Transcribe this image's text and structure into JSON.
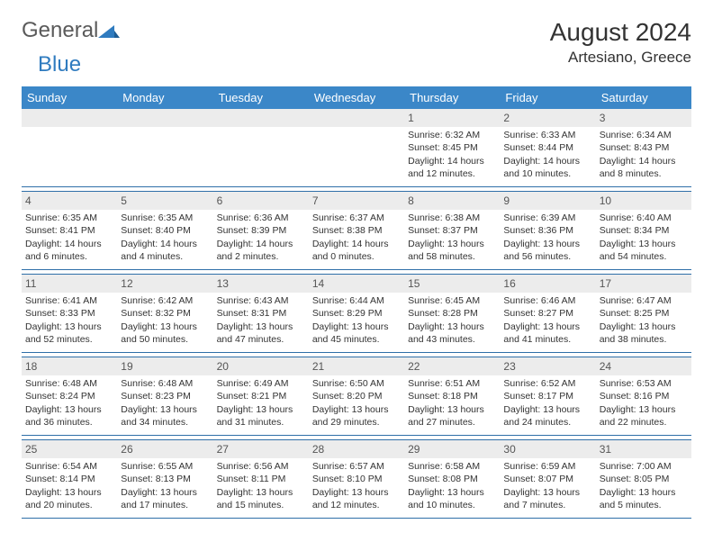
{
  "logo": {
    "general": "General",
    "blue": "Blue"
  },
  "title": "August 2024",
  "location": "Artesiano, Greece",
  "colors": {
    "header_bg": "#3b87c8",
    "header_text": "#ffffff",
    "row_border": "#2f6fa8",
    "daynum_bg": "#ececec",
    "text": "#333333",
    "logo_gray": "#5a5a5a",
    "logo_blue": "#2f7bbf"
  },
  "weekdays": [
    "Sunday",
    "Monday",
    "Tuesday",
    "Wednesday",
    "Thursday",
    "Friday",
    "Saturday"
  ],
  "weeks": [
    [
      null,
      null,
      null,
      null,
      {
        "d": "1",
        "sr": "6:32 AM",
        "ss": "8:45 PM",
        "dl": "14 hours and 12 minutes."
      },
      {
        "d": "2",
        "sr": "6:33 AM",
        "ss": "8:44 PM",
        "dl": "14 hours and 10 minutes."
      },
      {
        "d": "3",
        "sr": "6:34 AM",
        "ss": "8:43 PM",
        "dl": "14 hours and 8 minutes."
      }
    ],
    [
      {
        "d": "4",
        "sr": "6:35 AM",
        "ss": "8:41 PM",
        "dl": "14 hours and 6 minutes."
      },
      {
        "d": "5",
        "sr": "6:35 AM",
        "ss": "8:40 PM",
        "dl": "14 hours and 4 minutes."
      },
      {
        "d": "6",
        "sr": "6:36 AM",
        "ss": "8:39 PM",
        "dl": "14 hours and 2 minutes."
      },
      {
        "d": "7",
        "sr": "6:37 AM",
        "ss": "8:38 PM",
        "dl": "14 hours and 0 minutes."
      },
      {
        "d": "8",
        "sr": "6:38 AM",
        "ss": "8:37 PM",
        "dl": "13 hours and 58 minutes."
      },
      {
        "d": "9",
        "sr": "6:39 AM",
        "ss": "8:36 PM",
        "dl": "13 hours and 56 minutes."
      },
      {
        "d": "10",
        "sr": "6:40 AM",
        "ss": "8:34 PM",
        "dl": "13 hours and 54 minutes."
      }
    ],
    [
      {
        "d": "11",
        "sr": "6:41 AM",
        "ss": "8:33 PM",
        "dl": "13 hours and 52 minutes."
      },
      {
        "d": "12",
        "sr": "6:42 AM",
        "ss": "8:32 PM",
        "dl": "13 hours and 50 minutes."
      },
      {
        "d": "13",
        "sr": "6:43 AM",
        "ss": "8:31 PM",
        "dl": "13 hours and 47 minutes."
      },
      {
        "d": "14",
        "sr": "6:44 AM",
        "ss": "8:29 PM",
        "dl": "13 hours and 45 minutes."
      },
      {
        "d": "15",
        "sr": "6:45 AM",
        "ss": "8:28 PM",
        "dl": "13 hours and 43 minutes."
      },
      {
        "d": "16",
        "sr": "6:46 AM",
        "ss": "8:27 PM",
        "dl": "13 hours and 41 minutes."
      },
      {
        "d": "17",
        "sr": "6:47 AM",
        "ss": "8:25 PM",
        "dl": "13 hours and 38 minutes."
      }
    ],
    [
      {
        "d": "18",
        "sr": "6:48 AM",
        "ss": "8:24 PM",
        "dl": "13 hours and 36 minutes."
      },
      {
        "d": "19",
        "sr": "6:48 AM",
        "ss": "8:23 PM",
        "dl": "13 hours and 34 minutes."
      },
      {
        "d": "20",
        "sr": "6:49 AM",
        "ss": "8:21 PM",
        "dl": "13 hours and 31 minutes."
      },
      {
        "d": "21",
        "sr": "6:50 AM",
        "ss": "8:20 PM",
        "dl": "13 hours and 29 minutes."
      },
      {
        "d": "22",
        "sr": "6:51 AM",
        "ss": "8:18 PM",
        "dl": "13 hours and 27 minutes."
      },
      {
        "d": "23",
        "sr": "6:52 AM",
        "ss": "8:17 PM",
        "dl": "13 hours and 24 minutes."
      },
      {
        "d": "24",
        "sr": "6:53 AM",
        "ss": "8:16 PM",
        "dl": "13 hours and 22 minutes."
      }
    ],
    [
      {
        "d": "25",
        "sr": "6:54 AM",
        "ss": "8:14 PM",
        "dl": "13 hours and 20 minutes."
      },
      {
        "d": "26",
        "sr": "6:55 AM",
        "ss": "8:13 PM",
        "dl": "13 hours and 17 minutes."
      },
      {
        "d": "27",
        "sr": "6:56 AM",
        "ss": "8:11 PM",
        "dl": "13 hours and 15 minutes."
      },
      {
        "d": "28",
        "sr": "6:57 AM",
        "ss": "8:10 PM",
        "dl": "13 hours and 12 minutes."
      },
      {
        "d": "29",
        "sr": "6:58 AM",
        "ss": "8:08 PM",
        "dl": "13 hours and 10 minutes."
      },
      {
        "d": "30",
        "sr": "6:59 AM",
        "ss": "8:07 PM",
        "dl": "13 hours and 7 minutes."
      },
      {
        "d": "31",
        "sr": "7:00 AM",
        "ss": "8:05 PM",
        "dl": "13 hours and 5 minutes."
      }
    ]
  ],
  "labels": {
    "sunrise": "Sunrise: ",
    "sunset": "Sunset: ",
    "daylight": "Daylight: "
  }
}
